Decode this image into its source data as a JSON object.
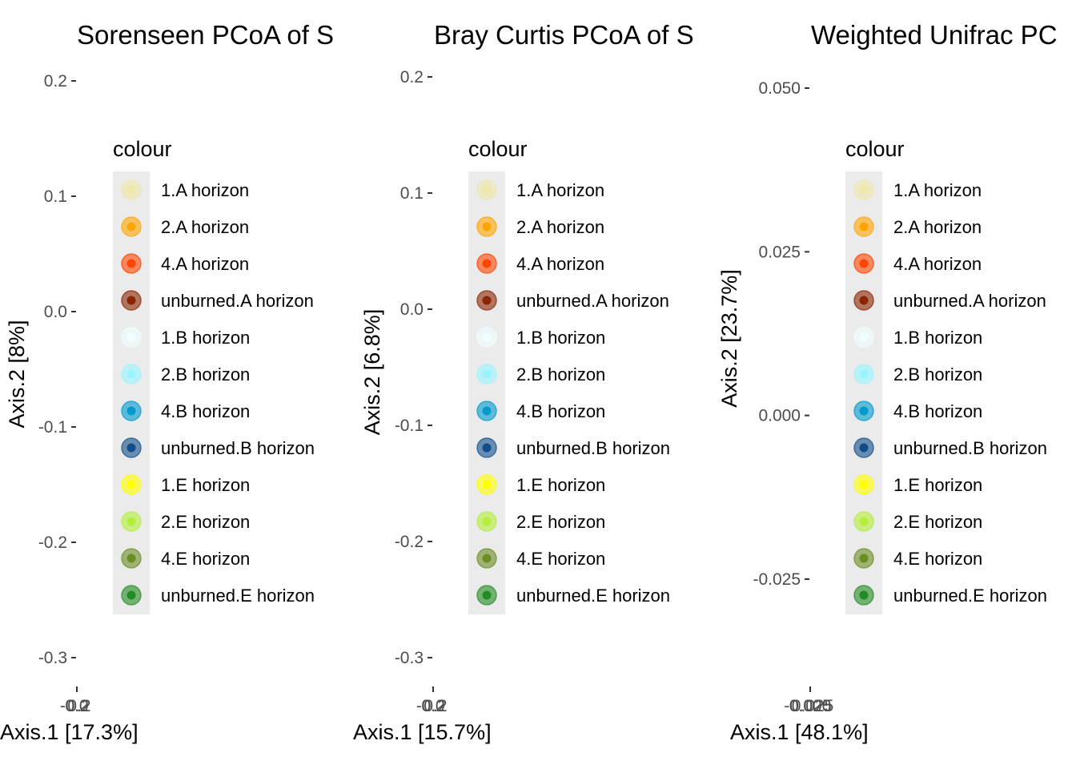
{
  "legend": {
    "title": "colour",
    "entries": [
      {
        "label": "1.A horizon",
        "color": "#EEE8AA"
      },
      {
        "label": "2.A horizon",
        "color": "#FFA500"
      },
      {
        "label": "4.A horizon",
        "color": "#FF4500"
      },
      {
        "label": "unburned.A horizon",
        "color": "#8B2500"
      },
      {
        "label": "1.B horizon",
        "color": "#F0FFFF"
      },
      {
        "label": "2.B horizon",
        "color": "#98F5FF"
      },
      {
        "label": "4.B horizon",
        "color": "#009ACD"
      },
      {
        "label": "unburned.B horizon",
        "color": "#104E8B"
      },
      {
        "label": "1.E horizon",
        "color": "#FFFF00"
      },
      {
        "label": "2.E horizon",
        "color": "#B3EE3A"
      },
      {
        "label": "4.E horizon",
        "color": "#6B8E23"
      },
      {
        "label": "unburned.E horizon",
        "color": "#228B22"
      }
    ]
  },
  "chart_data": [
    {
      "type": "scatter",
      "title": "Sorenseen PCoA of S",
      "xlabel": "Axis.1   [17.3%]",
      "ylabel": "Axis.2   [8%]",
      "yticks": [
        0.2,
        0.1,
        0.0,
        -0.1,
        -0.2,
        -0.3
      ],
      "ytick_labels": [
        "0.2",
        "0.1",
        "0.0",
        "-0.1",
        "-0.2",
        "-0.3"
      ],
      "xtick_labels": [
        "-0.2",
        "0.0",
        "0.2"
      ],
      "ylim": [
        -0.32,
        0.205
      ],
      "grid": false,
      "legend_position": "right"
    },
    {
      "type": "scatter",
      "title": "Bray Curtis PCoA of S",
      "xlabel": "Axis.1   [15.7%]",
      "ylabel": "Axis.2   [6.8%]",
      "yticks": [
        0.2,
        0.1,
        0.0,
        -0.1,
        -0.2,
        -0.3
      ],
      "ytick_labels": [
        "0.2",
        "0.1",
        "0.0",
        "-0.1",
        "-0.2",
        "-0.3"
      ],
      "xtick_labels": [
        "-0.2",
        "0.0",
        "0.2"
      ],
      "ylim": [
        -0.32,
        0.205
      ],
      "grid": false,
      "legend_position": "right"
    },
    {
      "type": "scatter",
      "title": "Weighted Unifrac PC",
      "xlabel": "Axis.1   [48.1%]",
      "ylabel": "Axis.2   [23.7%]",
      "yticks": [
        0.05,
        0.025,
        0.0,
        -0.025
      ],
      "ytick_labels": [
        "0.050",
        "0.025",
        "0.000",
        "-0.025"
      ],
      "xtick_labels": [
        "-0.025",
        "0.000",
        "0.025"
      ],
      "ylim": [
        -0.04,
        0.052
      ],
      "grid": false,
      "legend_position": "right"
    }
  ]
}
